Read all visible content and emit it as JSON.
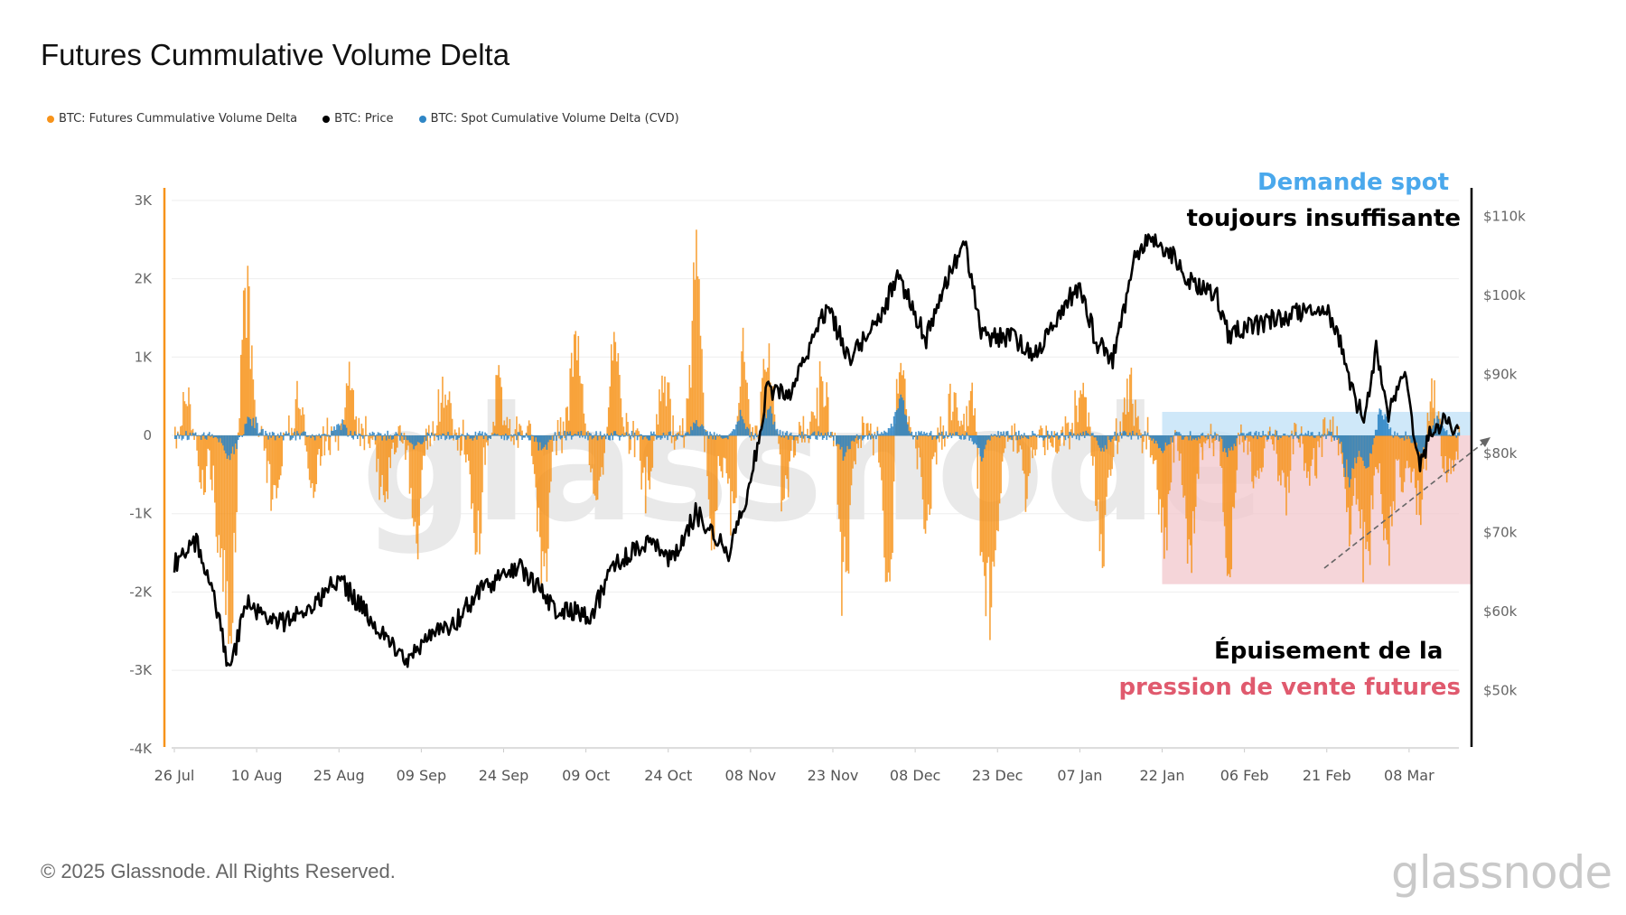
{
  "title": "Futures Cummulative Volume Delta",
  "legend": [
    {
      "label": "BTC: Futures Cummulative Volume Delta",
      "color": "#f7931a"
    },
    {
      "label": "BTC: Price",
      "color": "#000000"
    },
    {
      "label": "BTC: Spot Cumulative Volume Delta (CVD)",
      "color": "#2f86c6"
    }
  ],
  "annotations": {
    "top_line1": "Demande spot",
    "top_line2": "toujours insuffisante",
    "bottom_line1": "Épuisement de la",
    "bottom_line2": "pression de vente futures",
    "blue_color": "#4aa8ec",
    "red_color": "#e05a6e"
  },
  "footer": "© 2025 Glassnode. All Rights Reserved.",
  "logo": "glassnode",
  "watermark": "glassnode",
  "chart_data": {
    "type": "bar+line",
    "x_tick_labels": [
      "26 Jul",
      "10 Aug",
      "25 Aug",
      "09 Sep",
      "24 Sep",
      "09 Oct",
      "24 Oct",
      "08 Nov",
      "23 Nov",
      "08 Dec",
      "23 Dec",
      "07 Jan",
      "22 Jan",
      "06 Feb",
      "21 Feb",
      "08 Mar"
    ],
    "x_range": [
      "2024-07-26",
      "2025-03-17"
    ],
    "left_axis": {
      "ticks": [
        "3K",
        "2K",
        "1K",
        "0",
        "-1K",
        "-2K",
        "-3K",
        "-4K"
      ],
      "range": [
        -4000,
        3200
      ]
    },
    "right_axis": {
      "ticks": [
        "$110k",
        "$100k",
        "$90k",
        "$80k",
        "$70k",
        "$60k",
        "$50k"
      ],
      "range": [
        42000,
        113000
      ],
      "tick_values": [
        110000,
        100000,
        90000,
        80000,
        70000,
        60000,
        50000
      ]
    },
    "grid": true,
    "legend_placement": "top-left",
    "series": [
      {
        "name": "BTC: Price",
        "axis": "right",
        "type": "line",
        "color": "#000000",
        "points": [
          [
            "2024-07-26",
            66100
          ],
          [
            "2024-07-30",
            68800
          ],
          [
            "2024-08-02",
            63000
          ],
          [
            "2024-08-05",
            52000
          ],
          [
            "2024-08-08",
            61000
          ],
          [
            "2024-08-15",
            58500
          ],
          [
            "2024-08-20",
            60500
          ],
          [
            "2024-08-25",
            64200
          ],
          [
            "2024-09-01",
            58000
          ],
          [
            "2024-09-06",
            53500
          ],
          [
            "2024-09-10",
            57000
          ],
          [
            "2024-09-15",
            58500
          ],
          [
            "2024-09-20",
            63000
          ],
          [
            "2024-09-27",
            65800
          ],
          [
            "2024-10-03",
            60500
          ],
          [
            "2024-10-10",
            59500
          ],
          [
            "2024-10-14",
            65500
          ],
          [
            "2024-10-20",
            68800
          ],
          [
            "2024-10-25",
            66500
          ],
          [
            "2024-10-29",
            72500
          ],
          [
            "2024-11-04",
            67500
          ],
          [
            "2024-11-08",
            76500
          ],
          [
            "2024-11-11",
            88000
          ],
          [
            "2024-11-15",
            87500
          ],
          [
            "2024-11-22",
            98500
          ],
          [
            "2024-11-26",
            92000
          ],
          [
            "2024-12-01",
            96500
          ],
          [
            "2024-12-05",
            102500
          ],
          [
            "2024-12-10",
            94500
          ],
          [
            "2024-12-13",
            100500
          ],
          [
            "2024-12-17",
            107000
          ],
          [
            "2024-12-20",
            95000
          ],
          [
            "2024-12-26",
            94500
          ],
          [
            "2024-12-30",
            92500
          ],
          [
            "2025-01-03",
            97500
          ],
          [
            "2025-01-07",
            101500
          ],
          [
            "2025-01-10",
            94000
          ],
          [
            "2025-01-13",
            92000
          ],
          [
            "2025-01-17",
            104500
          ],
          [
            "2025-01-20",
            107500
          ],
          [
            "2025-01-24",
            105000
          ],
          [
            "2025-01-27",
            102000
          ],
          [
            "2025-02-01",
            100000
          ],
          [
            "2025-02-03",
            95000
          ],
          [
            "2025-02-09",
            96500
          ],
          [
            "2025-02-14",
            97500
          ],
          [
            "2025-02-21",
            98500
          ],
          [
            "2025-02-24",
            93000
          ],
          [
            "2025-02-26",
            87000
          ],
          [
            "2025-02-28",
            84000
          ],
          [
            "2025-03-02",
            94000
          ],
          [
            "2025-03-04",
            84500
          ],
          [
            "2025-03-07",
            90500
          ],
          [
            "2025-03-10",
            78500
          ],
          [
            "2025-03-12",
            83000
          ],
          [
            "2025-03-14",
            84000
          ],
          [
            "2025-03-17",
            83500
          ]
        ]
      },
      {
        "name": "BTC: Futures Cummulative Volume Delta",
        "axis": "left",
        "type": "bar",
        "color": "#f7931a",
        "extremes": [
          [
            "2024-07-28",
            600
          ],
          [
            "2024-07-31",
            -700
          ],
          [
            "2024-08-03",
            -1500
          ],
          [
            "2024-08-05",
            -2900
          ],
          [
            "2024-08-08",
            2100
          ],
          [
            "2024-08-13",
            -1100
          ],
          [
            "2024-08-18",
            700
          ],
          [
            "2024-08-20",
            -1200
          ],
          [
            "2024-08-27",
            900
          ],
          [
            "2024-09-02",
            -1100
          ],
          [
            "2024-09-08",
            -1600
          ],
          [
            "2024-09-13",
            700
          ],
          [
            "2024-09-19",
            -1700
          ],
          [
            "2024-09-23",
            800
          ],
          [
            "2024-10-01",
            -2400
          ],
          [
            "2024-10-07",
            1500
          ],
          [
            "2024-10-11",
            -1200
          ],
          [
            "2024-10-14",
            1500
          ],
          [
            "2024-10-20",
            -900
          ],
          [
            "2024-10-23",
            900
          ],
          [
            "2024-10-29",
            2600
          ],
          [
            "2024-11-01",
            -1500
          ],
          [
            "2024-11-05",
            -1800
          ],
          [
            "2024-11-06",
            1800
          ],
          [
            "2024-11-11",
            1200
          ],
          [
            "2024-11-14",
            -1000
          ],
          [
            "2024-11-21",
            900
          ],
          [
            "2024-11-25",
            -2500
          ],
          [
            "2024-12-03",
            -2300
          ],
          [
            "2024-12-05",
            1200
          ],
          [
            "2024-12-10",
            -1400
          ],
          [
            "2024-12-15",
            700
          ],
          [
            "2024-12-19",
            1300
          ],
          [
            "2024-12-20",
            -2200
          ],
          [
            "2024-12-22",
            -2700
          ],
          [
            "2024-12-28",
            -800
          ],
          [
            "2025-01-07",
            800
          ],
          [
            "2025-01-11",
            -1800
          ],
          [
            "2025-01-16",
            700
          ],
          [
            "2025-01-22",
            -1800
          ],
          [
            "2025-01-27",
            -2000
          ],
          [
            "2025-02-03",
            -2200
          ],
          [
            "2025-02-08",
            -900
          ],
          [
            "2025-02-13",
            -1000
          ],
          [
            "2025-02-18",
            -700
          ],
          [
            "2025-02-25",
            -1500
          ],
          [
            "2025-02-28",
            -2400
          ],
          [
            "2025-03-04",
            -1800
          ],
          [
            "2025-03-07",
            -900
          ],
          [
            "2025-03-10",
            -1200
          ],
          [
            "2025-03-12",
            700
          ],
          [
            "2025-03-15",
            -600
          ]
        ]
      },
      {
        "name": "BTC: Spot Cumulative Volume Delta (CVD)",
        "axis": "left",
        "type": "bar",
        "color": "#2f86c6",
        "extremes": [
          [
            "2024-08-05",
            -400
          ],
          [
            "2024-08-09",
            300
          ],
          [
            "2024-08-25",
            200
          ],
          [
            "2024-09-08",
            -200
          ],
          [
            "2024-10-01",
            -200
          ],
          [
            "2024-10-29",
            200
          ],
          [
            "2024-11-06",
            300
          ],
          [
            "2024-11-11",
            400
          ],
          [
            "2024-11-25",
            -300
          ],
          [
            "2024-12-05",
            600
          ],
          [
            "2024-12-20",
            -300
          ],
          [
            "2025-01-11",
            -200
          ],
          [
            "2025-01-22",
            -200
          ],
          [
            "2025-02-03",
            -300
          ],
          [
            "2025-02-25",
            -700
          ],
          [
            "2025-02-28",
            -500
          ],
          [
            "2025-03-03",
            400
          ],
          [
            "2025-03-10",
            -300
          ],
          [
            "2025-03-13",
            250
          ]
        ]
      }
    ],
    "highlight_regions": [
      {
        "from": "2025-01-22",
        "to": "2025-03-17",
        "y_range": [
          0,
          300
        ],
        "color": "#bfe0f7"
      },
      {
        "from": "2025-01-22",
        "to": "2025-03-17",
        "y_range": [
          -1900,
          0
        ],
        "color": "#f2c7cc"
      }
    ]
  }
}
